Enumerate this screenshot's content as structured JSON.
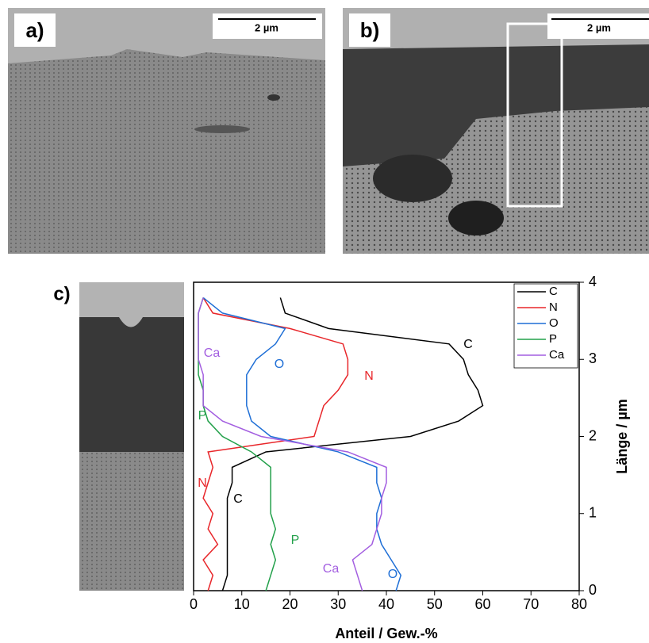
{
  "panels": [
    {
      "label": "a)",
      "scale_bar": "2 µm"
    },
    {
      "label": "b)",
      "scale_bar": "2 µm"
    },
    {
      "label": "c)"
    }
  ],
  "chart_data": {
    "type": "line",
    "orientation": "vertical",
    "xlabel": "Länge / µm",
    "ylabel": "Anteil / Gew.-%",
    "x": [
      0,
      0.2,
      0.4,
      0.6,
      0.8,
      1.0,
      1.2,
      1.4,
      1.6,
      1.8,
      2.0,
      2.2,
      2.4,
      2.6,
      2.8,
      3.0,
      3.2,
      3.4,
      3.6,
      3.8
    ],
    "xlim": [
      0,
      4
    ],
    "xticks": [
      0,
      1,
      2,
      3,
      4
    ],
    "ylim": [
      0,
      80
    ],
    "yticks": [
      0,
      10,
      20,
      30,
      40,
      50,
      60,
      70,
      80
    ],
    "legend": "top-right",
    "series": [
      {
        "name": "C",
        "color": "#000000",
        "values": [
          6,
          7,
          7,
          7,
          7,
          7,
          7,
          8,
          8,
          15,
          45,
          55,
          60,
          59,
          57,
          56,
          53,
          28,
          19,
          18
        ]
      },
      {
        "name": "N",
        "color": "#e8262a",
        "values": [
          3,
          4,
          2,
          5,
          3,
          4,
          2,
          3,
          4,
          3,
          25,
          26,
          27,
          30,
          32,
          32,
          31,
          20,
          4,
          2
        ]
      },
      {
        "name": "O",
        "color": "#1f6fd6",
        "values": [
          42,
          43,
          41,
          39,
          38,
          38,
          39,
          38,
          38,
          30,
          16,
          12,
          11,
          11,
          11,
          13,
          17,
          19,
          6,
          2
        ]
      },
      {
        "name": "P",
        "color": "#22a04a",
        "values": [
          15,
          16,
          17,
          16,
          17,
          16,
          16,
          16,
          16,
          12,
          6,
          3,
          2,
          2,
          1,
          1,
          1,
          1,
          1,
          2
        ]
      },
      {
        "name": "Ca",
        "color": "#a35ee0",
        "values": [
          35,
          34,
          33,
          37,
          38,
          39,
          39,
          40,
          40,
          32,
          14,
          6,
          2,
          2,
          2,
          1,
          1,
          1,
          1,
          2
        ]
      }
    ]
  }
}
